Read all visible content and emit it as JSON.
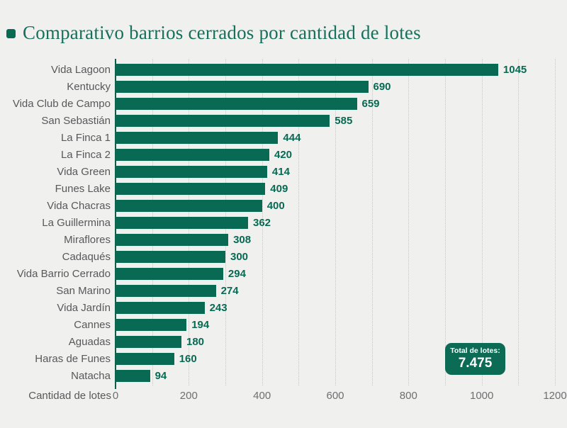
{
  "title": {
    "text": "Comparativo barrios cerrados por cantidad de lotes"
  },
  "colors": {
    "background": "#f0f0ee",
    "bar": "#086a53",
    "title": "#17705c",
    "category_label": "#57585a",
    "tick_label": "#6e6f71",
    "gridline": "#c8c8c6",
    "badge_background": "#0b6b54",
    "badge_text": "#ffffff"
  },
  "chart_data": {
    "type": "bar",
    "orientation": "horizontal",
    "title": "Comparativo barrios cerrados por cantidad de lotes",
    "categories": [
      "Vida Lagoon",
      "Kentucky",
      "Vida Club de Campo",
      "San Sebastián",
      "La Finca 1",
      "La Finca 2",
      "Vida Green",
      "Funes Lake",
      "Vida Chacras",
      "La Guillermina",
      "Miraflores",
      "Cadaqués",
      "Vida Barrio Cerrado",
      "San Marino",
      "Vida Jardín",
      "Cannes",
      "Aguadas",
      "Haras de Funes",
      "Natacha"
    ],
    "values": [
      1045,
      690,
      659,
      585,
      444,
      420,
      414,
      409,
      400,
      362,
      308,
      300,
      294,
      274,
      243,
      194,
      180,
      160,
      94
    ],
    "xlabel": "Cantidad de lotes",
    "ylabel": "",
    "xlim": [
      0,
      1200
    ],
    "xticks": [
      0,
      200,
      400,
      600,
      800,
      1000,
      1200
    ],
    "gridline_interval": 100,
    "grid": true,
    "value_labels": true,
    "legend": false
  },
  "total_badge": {
    "label": "Total de lotes:",
    "value": "7.475"
  }
}
